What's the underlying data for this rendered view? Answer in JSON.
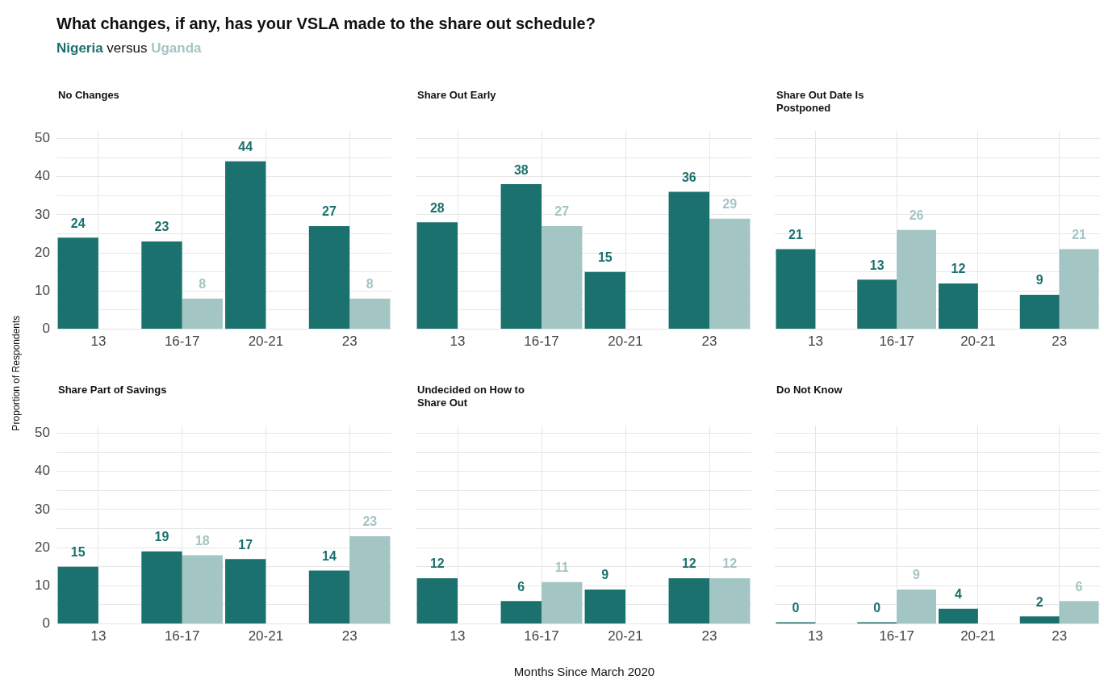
{
  "chart_data": [
    {
      "type": "other",
      "title": "What changes, if any, has your VSLA made to the share out schedule?",
      "subtitle": "Nigeria versus Uganda",
      "xlabel": "Months Since March 2020",
      "ylabel": "Proportion of Respondents"
    },
    {
      "type": "bar",
      "title": "No Changes",
      "categories": [
        "13",
        "16-17",
        "20-21",
        "23"
      ],
      "series": [
        {
          "color": "#1b716e",
          "values": [
            24,
            23,
            44,
            27
          ]
        },
        {
          "color": "#a3c5c3",
          "values": [
            null,
            8,
            null,
            8
          ]
        }
      ],
      "ylim": [
        0,
        52
      ],
      "yticks": [
        0,
        {
          "value": 5,
          "label": null
        },
        10,
        {
          "value": 15,
          "label": null
        },
        20,
        {
          "value": 25,
          "label": null
        },
        30,
        {
          "value": 35,
          "label": null
        },
        40,
        {
          "value": 45,
          "label": null
        },
        50
      ],
      "grid": true,
      "legend": false,
      "data_labels": true
    },
    {
      "type": "bar",
      "title": "Share Out Early",
      "categories": [
        "13",
        "16-17",
        "20-21",
        "23"
      ],
      "series": [
        {
          "color": "#1b716e",
          "values": [
            28,
            38,
            15,
            36
          ]
        },
        {
          "color": "#a3c5c3",
          "values": [
            null,
            27,
            null,
            29
          ]
        }
      ],
      "ylim": [
        0,
        52
      ],
      "yticks": [
        0,
        {
          "value": 5,
          "label": null
        },
        10,
        {
          "value": 15,
          "label": null
        },
        20,
        {
          "value": 25,
          "label": null
        },
        30,
        {
          "value": 35,
          "label": null
        },
        40,
        {
          "value": 45,
          "label": null
        },
        50
      ],
      "grid": true,
      "legend": false,
      "data_labels": true,
      "tick_labels": "x"
    },
    {
      "type": "bar",
      "title": "Share Out Date Is Postponed",
      "categories": [
        "13",
        "16-17",
        "20-21",
        "23"
      ],
      "series": [
        {
          "color": "#1b716e",
          "values": [
            21,
            13,
            12,
            9
          ]
        },
        {
          "color": "#a3c5c3",
          "values": [
            null,
            26,
            null,
            21
          ]
        }
      ],
      "ylim": [
        0,
        52
      ],
      "yticks": [
        0,
        {
          "value": 5,
          "label": null
        },
        10,
        {
          "value": 15,
          "label": null
        },
        20,
        {
          "value": 25,
          "label": null
        },
        30,
        {
          "value": 35,
          "label": null
        },
        40,
        {
          "value": 45,
          "label": null
        },
        50
      ],
      "grid": true,
      "legend": false,
      "data_labels": true,
      "tick_labels": "x"
    },
    {
      "type": "bar",
      "title": "Share Part of Savings",
      "categories": [
        "13",
        "16-17",
        "20-21",
        "23"
      ],
      "series": [
        {
          "color": "#1b716e",
          "values": [
            15,
            19,
            17,
            14
          ]
        },
        {
          "color": "#a3c5c3",
          "values": [
            null,
            18,
            null,
            23
          ]
        }
      ],
      "ylim": [
        0,
        52
      ],
      "yticks": [
        0,
        {
          "value": 5,
          "label": null
        },
        10,
        {
          "value": 15,
          "label": null
        },
        20,
        {
          "value": 25,
          "label": null
        },
        30,
        {
          "value": 35,
          "label": null
        },
        40,
        {
          "value": 45,
          "label": null
        },
        50
      ],
      "grid": true,
      "legend": false,
      "data_labels": true
    },
    {
      "type": "bar",
      "title": "Undecided on How to Share Out",
      "categories": [
        "13",
        "16-17",
        "20-21",
        "23"
      ],
      "series": [
        {
          "color": "#1b716e",
          "values": [
            12,
            6,
            9,
            12
          ]
        },
        {
          "color": "#a3c5c3",
          "values": [
            null,
            11,
            null,
            12
          ]
        }
      ],
      "ylim": [
        0,
        52
      ],
      "yticks": [
        0,
        {
          "value": 5,
          "label": null
        },
        10,
        {
          "value": 15,
          "label": null
        },
        20,
        {
          "value": 25,
          "label": null
        },
        30,
        {
          "value": 35,
          "label": null
        },
        40,
        {
          "value": 45,
          "label": null
        },
        50
      ],
      "grid": true,
      "legend": false,
      "data_labels": true,
      "tick_labels": "x"
    },
    {
      "type": "bar",
      "title": "Do Not Know",
      "categories": [
        "13",
        "16-17",
        "20-21",
        "23"
      ],
      "series": [
        {
          "color": "#1b716e",
          "values": [
            0,
            0,
            4,
            2
          ]
        },
        {
          "color": "#a3c5c3",
          "values": [
            null,
            9,
            null,
            6
          ]
        }
      ],
      "ylim": [
        0,
        52
      ],
      "yticks": [
        0,
        {
          "value": 5,
          "label": null
        },
        10,
        {
          "value": 15,
          "label": null
        },
        20,
        {
          "value": 25,
          "label": null
        },
        30,
        {
          "value": 35,
          "label": null
        },
        40,
        {
          "value": 45,
          "label": null
        },
        50
      ],
      "grid": true,
      "legend": false,
      "data_labels": true,
      "tick_labels": "x"
    }
  ]
}
